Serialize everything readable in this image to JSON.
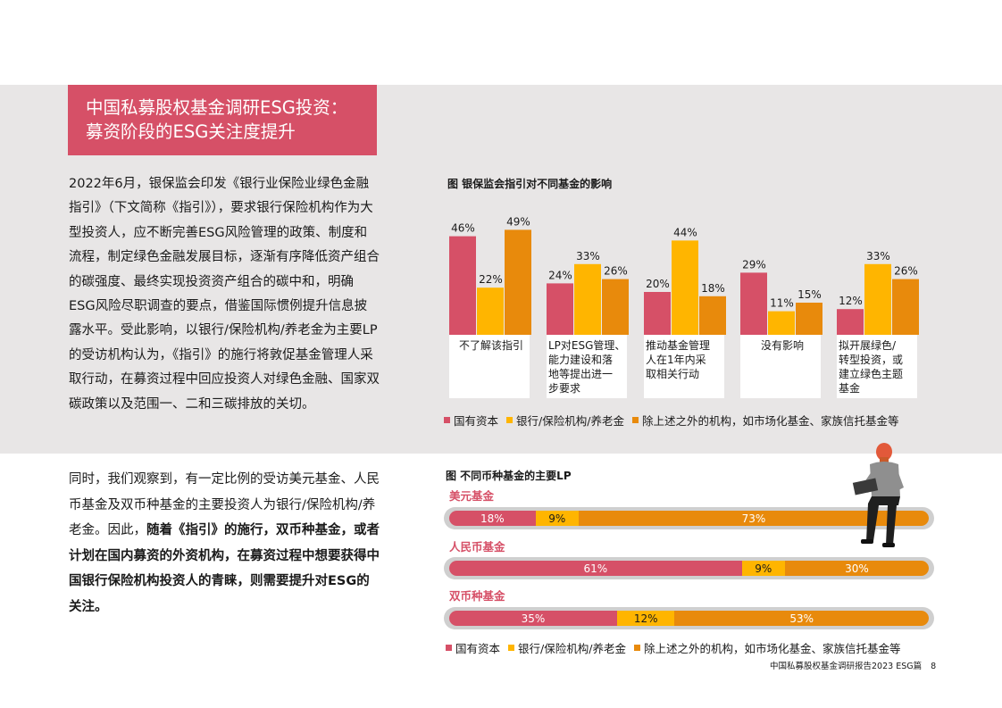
{
  "title": {
    "line1": "中国私募股权基金调研ESG投资：",
    "line2": "募资阶段的ESG关注度提升"
  },
  "para1": "2022年6月，银保监会印发《银行业保险业绿色金融指引》（下文简称《指引》），要求银行保险机构作为大型投资人，应不断完善ESG风险管理的政策、制度和流程，制定绿色金融发展目标，逐渐有序降低资产组合的碳强度、最终实现投资资产组合的碳中和，明确ESG风险尽职调查的要点，借鉴国际惯例提升信息披露水平。受此影响，以银行/保险机构/养老金为主要LP的受访机构认为，《指引》的施行将敦促基金管理人采取行动，在募资过程中回应投资人对绿色金融、国家双碳政策以及范围一、二和三碳排放的关切。",
  "para2": {
    "normal": "同时，我们观察到，有一定比例的受访美元基金、人民币基金及双币种基金的主要投资人为银行/保险机构/养老金。因此，",
    "bold": "随着《指引》的施行，双币种基金，或者计划在国内募资的外资机构，在募资过程中想要获得中国银行保险机构投资人的青睐，则需要提升对ESG的关注。"
  },
  "colors": {
    "red": "#d65067",
    "yellow": "#ffb500",
    "orange": "#e88a0c"
  },
  "chart_data": [
    {
      "type": "bar",
      "title": "图 银保监会指引对不同基金的影响",
      "categories": [
        "不了解该指引",
        "LP对ESG管理、能力建设和落地等提出进一步要求",
        "推动基金管理人在1年内采取相关行动",
        "没有影响",
        "拟开展绿色/转型投资，或建立绿色主题基金"
      ],
      "category_lines": [
        [
          "不了解该指引"
        ],
        [
          "LP对ESG管理、",
          "能力建设和落",
          "地等提出进一",
          "步要求"
        ],
        [
          "推动基金管理",
          "人在1年内采",
          "取相关行动"
        ],
        [
          "没有影响"
        ],
        [
          "拟开展绿色/",
          "转型投资，或",
          "建立绿色主题",
          "基金"
        ]
      ],
      "series": [
        {
          "name": "国有资本",
          "values": [
            46,
            24,
            20,
            29,
            12
          ]
        },
        {
          "name": "银行/保险机构/养老金",
          "values": [
            22,
            33,
            44,
            11,
            33
          ]
        },
        {
          "name": "除上述之外的机构，如市场化基金、家族信托基金等",
          "values": [
            49,
            26,
            18,
            15,
            26
          ]
        }
      ],
      "unit": "%"
    },
    {
      "type": "bar",
      "orientation": "horizontal-stacked",
      "title": "图 不同币种基金的主要LP",
      "categories": [
        "美元基金",
        "人民币基金",
        "双币种基金"
      ],
      "series": [
        {
          "name": "国有资本",
          "values": [
            18,
            61,
            35
          ]
        },
        {
          "name": "银行/保险机构/养老金",
          "values": [
            9,
            9,
            12
          ]
        },
        {
          "name": "除上述之外的机构，如市场化基金、家族信托基金等",
          "values": [
            73,
            30,
            53
          ]
        }
      ],
      "unit": "%"
    }
  ],
  "footer": {
    "text": "中国私募股权基金调研报告2023 ESG篇",
    "page": "8"
  }
}
